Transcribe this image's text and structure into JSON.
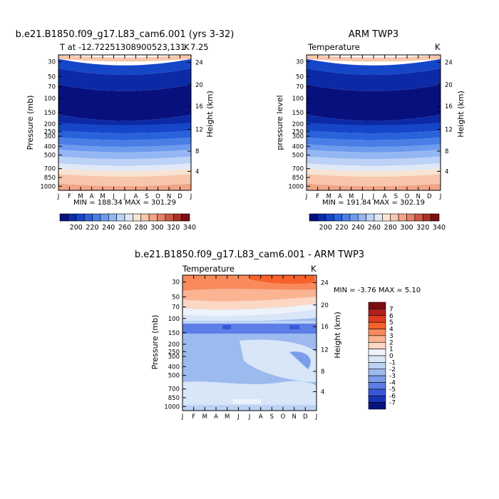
{
  "chart_data": [
    {
      "type": "heatmap",
      "title": "b.e21.B1850.f09_g17.L83_cam6.001 (yrs 3-32)",
      "subtitle_left": "T at -12.72251308900523,131",
      "subtitle_right": "K",
      "subtitle_extra": "7.25",
      "ylabel": "Pressure (mb)",
      "ylabel_right": "Height (km)",
      "months": [
        "J",
        "F",
        "M",
        "A",
        "M",
        "J",
        "J",
        "A",
        "S",
        "O",
        "N",
        "D",
        "J"
      ],
      "pressure_ticks": [
        "30",
        "50",
        "70",
        "100",
        "150",
        "200",
        "250",
        "300",
        "400",
        "500",
        "700",
        "850",
        "1000"
      ],
      "height_ticks": [
        "24",
        "20",
        "16",
        "12",
        "8",
        "4"
      ],
      "stats": "MIN = 188.34  MAX = 301.29",
      "colorbar_labels": [
        "200",
        "220",
        "240",
        "260",
        "280",
        "300",
        "320",
        "340"
      ]
    },
    {
      "type": "heatmap",
      "title": "ARM TWP3",
      "subtitle_left": "Temperature",
      "subtitle_right": "K",
      "ylabel": "pressure level",
      "ylabel_right": "Height (km)",
      "months": [
        "J",
        "F",
        "M",
        "A",
        "M",
        "J",
        "J",
        "A",
        "S",
        "O",
        "N",
        "D",
        "J"
      ],
      "pressure_ticks": [
        "30",
        "50",
        "70",
        "100",
        "150",
        "200",
        "250",
        "300",
        "400",
        "500",
        "700",
        "850",
        "1000"
      ],
      "height_ticks": [
        "24",
        "20",
        "16",
        "12",
        "8",
        "4"
      ],
      "stats": "MIN = 191.84  MAX = 302.19",
      "colorbar_labels": [
        "200",
        "220",
        "240",
        "260",
        "280",
        "300",
        "320",
        "340"
      ]
    },
    {
      "type": "heatmap",
      "title": "b.e21.B1850.f09_g17.L83_cam6.001 - ARM TWP3",
      "subtitle_left": "Temperature",
      "subtitle_right": "K",
      "ylabel": "Pressure (mb)",
      "ylabel_right": "Height (km)",
      "months": [
        "J",
        "F",
        "M",
        "A",
        "M",
        "J",
        "J",
        "A",
        "S",
        "O",
        "N",
        "D",
        "J"
      ],
      "pressure_ticks": [
        "30",
        "50",
        "70",
        "100",
        "150",
        "200",
        "250",
        "300",
        "400",
        "500",
        "700",
        "850",
        "1000"
      ],
      "height_ticks": [
        "24",
        "20",
        "16",
        "12",
        "8",
        "4"
      ],
      "stats": "MIN =   -3.76 MAX =    5.10",
      "colorbar_labels": [
        "7",
        "6",
        "5",
        "4",
        "3",
        "2",
        "1",
        "0",
        "-1",
        "-2",
        "-3",
        "-4",
        "-5",
        "-6",
        "-7"
      ]
    }
  ],
  "colors": {
    "abs_scale": [
      "#08107e",
      "#0c2aa6",
      "#1646c8",
      "#2a62dc",
      "#4a7ee6",
      "#6c9aee",
      "#94b6f2",
      "#bcd2f6",
      "#dfe8f6",
      "#f9e3d2",
      "#f7c6ac",
      "#f0a488",
      "#e38068",
      "#cc5848",
      "#aa3028",
      "#7a0e10"
    ],
    "diff_scale": [
      "#7a0c10",
      "#b0201c",
      "#e03c22",
      "#f6622a",
      "#f98a5c",
      "#fbb492",
      "#fcd8c4",
      "#eef2fb",
      "#d8e6f8",
      "#bcd2f4",
      "#9cbaee",
      "#7c9eea",
      "#5c7ee6",
      "#3858d8",
      "#1a34b8",
      "#0a127e"
    ]
  }
}
